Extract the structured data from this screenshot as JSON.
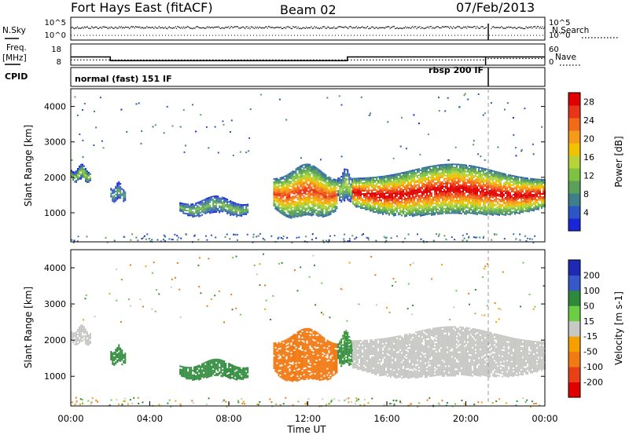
{
  "header": {
    "station": "Fort Hays East (fitACF)",
    "beam": "Beam 02",
    "date": "07/Feb/2013"
  },
  "labels": {
    "nsky": "N.Sky",
    "nsearch": "N.Search",
    "freq_line1": "Freq.",
    "freq_line2": "[MHz]",
    "nave": "Nave",
    "cpid": "CPID",
    "cpid_mode_a": "normal (fast) 151 IF",
    "cpid_mode_b": "rbsp 200 IF"
  },
  "chart_data": [
    {
      "type": "line",
      "name": "noise-panel",
      "left_ticks": [
        "10^5",
        "10^0"
      ],
      "right_ticks": [
        "10^5",
        "10^0"
      ],
      "xlim": [
        "00:00",
        "24:00"
      ],
      "series": [
        {
          "name": "N.Sky",
          "style": "dots",
          "level": "~10^3",
          "gap_at": "21:00"
        },
        {
          "name": "N.Search",
          "style": "dotted",
          "level": "~10^0"
        }
      ]
    },
    {
      "type": "line",
      "name": "frequency-panel",
      "left_ticks": [
        "18",
        "8"
      ],
      "right_ticks": [
        "60",
        "0"
      ],
      "series": [
        {
          "name": "Freq. [MHz]",
          "style": "solid",
          "points": [
            [
              "00:00",
              13.5
            ],
            [
              "02:00",
              13.5
            ],
            [
              "02:00",
              11
            ],
            [
              "14:00",
              11
            ],
            [
              "14:00",
              13.5
            ],
            [
              "21:00",
              13.5
            ],
            [
              "21:00",
              8
            ],
            [
              "21:00",
              13.5
            ],
            [
              "24:00",
              13.5
            ]
          ]
        },
        {
          "name": "Nave",
          "style": "dotted",
          "points": [
            [
              "00:00",
              21
            ],
            [
              "21:00",
              21
            ],
            [
              "21:00",
              27
            ],
            [
              "24:00",
              27
            ]
          ]
        }
      ],
      "cpid_segments": [
        {
          "label": "normal (fast) 151 IF",
          "start": "00:00",
          "end": "21:00"
        },
        {
          "label": "rbsp 200 IF",
          "start": "21:00",
          "end": "24:00"
        }
      ]
    },
    {
      "type": "heatmap",
      "name": "power",
      "ylabel": "Slant Range [km]",
      "yticks": [
        1000,
        2000,
        3000,
        4000
      ],
      "ylim": [
        180,
        4500
      ],
      "colorbar": {
        "label": "Power [dB]",
        "ticks": [
          4,
          8,
          12,
          16,
          20,
          24,
          28
        ],
        "range": [
          0,
          30
        ],
        "colors": [
          "#1a25d8",
          "#2e55c4",
          "#3d7f8a",
          "#5aa05a",
          "#7ec244",
          "#b8d23a",
          "#f0c200",
          "#f59a1a",
          "#f06a1a",
          "#e83418",
          "#e00000"
        ]
      },
      "features": [
        {
          "t0": "00:00",
          "t1": "01:00",
          "r0": 1900,
          "r1": 2300,
          "peak": 14
        },
        {
          "t0": "02:00",
          "t1": "02:45",
          "r0": 1350,
          "r1": 1800,
          "peak": 10
        },
        {
          "t0": "05:30",
          "t1": "09:00",
          "r0": 950,
          "r1": 1400,
          "peak": 12
        },
        {
          "t0": "10:15",
          "t1": "13:30",
          "r0": 850,
          "r1": 2300,
          "peak": 26
        },
        {
          "t0": "13:30",
          "t1": "14:15",
          "r0": 1300,
          "r1": 2200,
          "peak": 14
        },
        {
          "t0": "14:15",
          "t1": "24:00",
          "r0": 900,
          "r1": 2300,
          "peak": 30
        }
      ]
    },
    {
      "type": "heatmap",
      "name": "velocity",
      "ylabel": "Slant Range [km]",
      "xlabel": "Time UT",
      "xticks": [
        "00:00",
        "04:00",
        "08:00",
        "12:00",
        "16:00",
        "20:00",
        "00:00"
      ],
      "yticks": [
        1000,
        2000,
        3000,
        4000
      ],
      "ylim": [
        180,
        4500
      ],
      "colorbar": {
        "label": "Velocity [m s-1]",
        "ticks": [
          "200",
          "100",
          "50",
          "15",
          "-15",
          "-50",
          "-100",
          "-200"
        ],
        "colors": [
          "#1f2ab4",
          "#3658c8",
          "#2e8a3a",
          "#6ccc44",
          "#c8c8c4",
          "#f5a000",
          "#f27a14",
          "#ea4018",
          "#e00000"
        ]
      },
      "features": [
        {
          "t0": "00:00",
          "t1": "01:00",
          "r0": 1900,
          "r1": 2350,
          "vel": 0
        },
        {
          "t0": "02:00",
          "t1": "02:45",
          "r0": 1350,
          "r1": 1800,
          "vel": 60
        },
        {
          "t0": "05:30",
          "t1": "09:00",
          "r0": 950,
          "r1": 1400,
          "vel": 60
        },
        {
          "t0": "10:15",
          "t1": "13:30",
          "r0": 850,
          "r1": 2250,
          "vel": -60
        },
        {
          "t0": "13:30",
          "t1": "14:15",
          "r0": 1300,
          "r1": 2200,
          "vel": 40
        },
        {
          "t0": "14:15",
          "t1": "24:00",
          "r0": 950,
          "r1": 2300,
          "vel": 0
        }
      ]
    }
  ]
}
